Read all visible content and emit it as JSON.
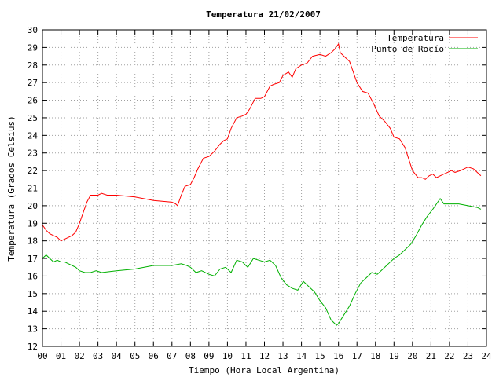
{
  "chart_data": {
    "type": "line",
    "title": "Temperatura 21/02/2007",
    "xlabel": "Tiempo (Hora Local Argentina)",
    "ylabel": "Temperatura (Grados Celsius)",
    "xlim": [
      0,
      24
    ],
    "ylim": [
      12,
      30
    ],
    "x_ticks": [
      "00",
      "01",
      "02",
      "03",
      "04",
      "05",
      "06",
      "07",
      "08",
      "09",
      "10",
      "11",
      "12",
      "13",
      "14",
      "15",
      "16",
      "17",
      "18",
      "19",
      "20",
      "21",
      "22",
      "23",
      "24"
    ],
    "y_ticks": [
      12,
      13,
      14,
      15,
      16,
      17,
      18,
      19,
      20,
      21,
      22,
      23,
      24,
      25,
      26,
      27,
      28,
      29,
      30
    ],
    "grid": true,
    "legend_position": "top-right",
    "series": [
      {
        "name": "Temperatura",
        "color": "#ff0000",
        "x": [
          0.0,
          0.2,
          0.4,
          0.6,
          0.8,
          1.0,
          1.2,
          1.4,
          1.6,
          1.8,
          2.0,
          2.2,
          2.4,
          2.6,
          2.8,
          3.0,
          3.2,
          3.5,
          4.0,
          5.0,
          6.0,
          7.0,
          7.2,
          7.3,
          7.5,
          7.7,
          8.0,
          8.2,
          8.4,
          8.7,
          9.0,
          9.3,
          9.6,
          9.8,
          10.0,
          10.2,
          10.5,
          10.8,
          11.0,
          11.2,
          11.5,
          11.8,
          12.0,
          12.3,
          12.5,
          12.8,
          13.0,
          13.3,
          13.5,
          13.7,
          14.0,
          14.3,
          14.6,
          15.0,
          15.3,
          15.6,
          15.8,
          16.0,
          16.1,
          16.3,
          16.6,
          16.8,
          17.0,
          17.3,
          17.6,
          17.9,
          18.2,
          18.5,
          18.8,
          19.0,
          19.3,
          19.6,
          20.0,
          20.3,
          20.5,
          20.7,
          20.9,
          21.1,
          21.3,
          21.5,
          21.7,
          21.9,
          22.1,
          22.3,
          22.6,
          23.0,
          23.3,
          23.5,
          23.7
        ],
        "y": [
          18.9,
          18.6,
          18.4,
          18.3,
          18.2,
          18.0,
          18.1,
          18.2,
          18.3,
          18.5,
          19.0,
          19.6,
          20.2,
          20.6,
          20.6,
          20.6,
          20.7,
          20.6,
          20.6,
          20.5,
          20.3,
          20.2,
          20.1,
          20.0,
          20.6,
          21.1,
          21.2,
          21.6,
          22.1,
          22.7,
          22.8,
          23.1,
          23.5,
          23.7,
          23.8,
          24.4,
          25.0,
          25.1,
          25.2,
          25.5,
          26.1,
          26.1,
          26.2,
          26.8,
          26.9,
          27.0,
          27.4,
          27.6,
          27.3,
          27.8,
          28.0,
          28.1,
          28.5,
          28.6,
          28.5,
          28.7,
          28.9,
          29.2,
          28.7,
          28.5,
          28.2,
          27.6,
          27.0,
          26.5,
          26.4,
          25.8,
          25.1,
          24.8,
          24.4,
          23.9,
          23.8,
          23.3,
          22.0,
          21.6,
          21.6,
          21.5,
          21.7,
          21.8,
          21.6,
          21.7,
          21.8,
          21.9,
          22.0,
          21.9,
          22.0,
          22.2,
          22.1,
          21.9,
          21.7
        ]
      },
      {
        "name": "Punto de Rocío",
        "color": "#00b000",
        "x": [
          0.0,
          0.2,
          0.4,
          0.6,
          0.8,
          1.0,
          1.2,
          1.4,
          1.6,
          1.8,
          2.0,
          2.3,
          2.6,
          2.9,
          3.2,
          4.0,
          5.0,
          6.0,
          7.0,
          7.5,
          7.8,
          8.0,
          8.3,
          8.6,
          9.0,
          9.3,
          9.6,
          9.9,
          10.2,
          10.5,
          10.8,
          11.1,
          11.4,
          11.7,
          12.0,
          12.3,
          12.6,
          12.9,
          13.2,
          13.5,
          13.8,
          14.1,
          14.4,
          14.7,
          15.0,
          15.3,
          15.6,
          15.9,
          16.0,
          16.3,
          16.6,
          16.9,
          17.2,
          17.5,
          17.8,
          18.1,
          18.4,
          18.7,
          19.0,
          19.3,
          19.6,
          19.9,
          20.2,
          20.5,
          20.8,
          21.1,
          21.3,
          21.5,
          21.7,
          22.0,
          22.5,
          23.0,
          23.5,
          23.7
        ],
        "y": [
          17.0,
          17.2,
          17.0,
          16.8,
          16.9,
          16.8,
          16.8,
          16.7,
          16.6,
          16.5,
          16.3,
          16.2,
          16.2,
          16.3,
          16.2,
          16.3,
          16.4,
          16.6,
          16.6,
          16.7,
          16.6,
          16.5,
          16.2,
          16.3,
          16.1,
          16.0,
          16.4,
          16.5,
          16.2,
          16.9,
          16.8,
          16.5,
          17.0,
          16.9,
          16.8,
          16.9,
          16.6,
          15.9,
          15.5,
          15.3,
          15.2,
          15.7,
          15.4,
          15.1,
          14.6,
          14.2,
          13.5,
          13.2,
          13.3,
          13.8,
          14.3,
          15.0,
          15.6,
          15.9,
          16.2,
          16.1,
          16.4,
          16.7,
          17.0,
          17.2,
          17.5,
          17.8,
          18.3,
          18.9,
          19.4,
          19.8,
          20.1,
          20.4,
          20.1,
          20.1,
          20.1,
          20.0,
          19.9,
          19.8
        ]
      }
    ]
  }
}
